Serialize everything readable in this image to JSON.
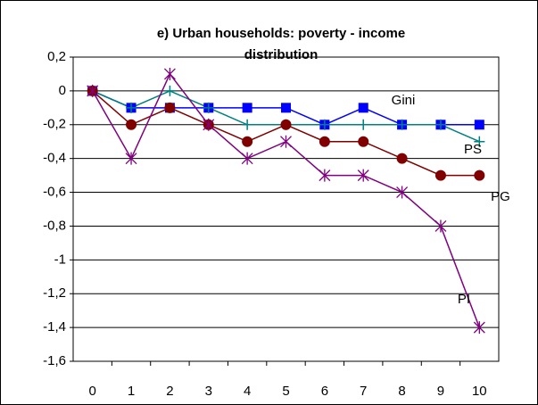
{
  "chart_data": {
    "type": "line",
    "title": [
      "e) Urban households: poverty - income",
      "distribution"
    ],
    "x": [
      0,
      1,
      2,
      3,
      4,
      5,
      6,
      7,
      8,
      9,
      10
    ],
    "xlim": [
      -0.5,
      10.5
    ],
    "xticks": [
      0,
      1,
      2,
      3,
      4,
      5,
      6,
      7,
      8,
      9,
      10
    ],
    "ylim": [
      -1.6,
      0.2
    ],
    "yticks": [
      {
        "value": 0.2,
        "label": "0,2"
      },
      0,
      {
        "value": -0.2,
        "label": "-0,2"
      },
      {
        "value": -0.4,
        "label": "-0,4"
      },
      {
        "value": -0.6,
        "label": "-0,6"
      },
      {
        "value": -0.8,
        "label": "-0,8"
      },
      -1,
      {
        "value": -1.2,
        "label": "-1,2"
      },
      {
        "value": -1.4,
        "label": "-1,4"
      },
      {
        "value": -1.6,
        "label": "-1,6"
      }
    ],
    "grid": true,
    "series": [
      {
        "name": "Gini",
        "color": "#0000ff",
        "marker": "square",
        "values": [
          0,
          -0.1,
          -0.1,
          -0.1,
          -0.1,
          -0.1,
          -0.2,
          -0.1,
          -0.2,
          -0.2,
          -0.2
        ]
      },
      {
        "name": "PS",
        "color": "#008080",
        "marker": "plus",
        "values": [
          0,
          -0.1,
          0,
          -0.1,
          -0.2,
          -0.2,
          -0.2,
          -0.2,
          -0.2,
          -0.2,
          -0.3
        ]
      },
      {
        "name": "PG",
        "color": "#800000",
        "marker": "circle",
        "values": [
          0,
          -0.2,
          -0.1,
          -0.2,
          -0.3,
          -0.2,
          -0.3,
          -0.3,
          -0.4,
          -0.5,
          -0.5
        ]
      },
      {
        "name": "PI",
        "color": "#800080",
        "marker": "asterisk",
        "values": [
          0,
          -0.4,
          0.1,
          -0.2,
          -0.4,
          -0.3,
          -0.5,
          -0.5,
          -0.6,
          -0.8,
          -1.4
        ]
      }
    ]
  }
}
